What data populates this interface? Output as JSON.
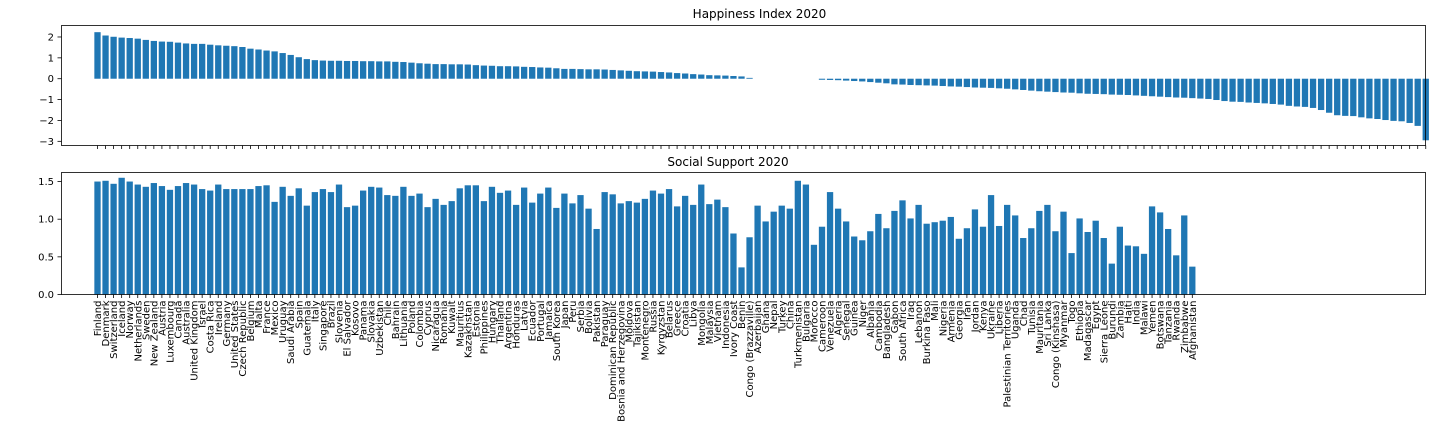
{
  "chart_data": [
    {
      "type": "bar",
      "title": "Happiness Index 2020",
      "xlabel": "",
      "ylabel": "",
      "ylim": [
        -3.2,
        2.55
      ],
      "yticks": [
        -3,
        -2,
        -1,
        0,
        1,
        2
      ],
      "bar_color": "#1f77b4",
      "show_xtick_labels": false,
      "values": [
        2.23,
        2.07,
        2.01,
        1.97,
        1.95,
        1.92,
        1.86,
        1.81,
        1.78,
        1.77,
        1.73,
        1.69,
        1.67,
        1.67,
        1.63,
        1.6,
        1.58,
        1.56,
        1.52,
        1.44,
        1.4,
        1.35,
        1.31,
        1.23,
        1.14,
        1.03,
        0.94,
        0.89,
        0.87,
        0.86,
        0.86,
        0.85,
        0.85,
        0.84,
        0.84,
        0.83,
        0.83,
        0.81,
        0.8,
        0.77,
        0.74,
        0.72,
        0.7,
        0.7,
        0.69,
        0.69,
        0.68,
        0.65,
        0.63,
        0.62,
        0.6,
        0.6,
        0.59,
        0.57,
        0.56,
        0.54,
        0.53,
        0.5,
        0.47,
        0.47,
        0.46,
        0.45,
        0.45,
        0.44,
        0.42,
        0.4,
        0.38,
        0.36,
        0.35,
        0.34,
        0.32,
        0.3,
        0.27,
        0.25,
        0.22,
        0.2,
        0.17,
        0.16,
        0.15,
        0.13,
        0.11,
        0.04,
        0,
        0,
        0,
        0,
        0,
        0,
        0,
        0,
        -0.05,
        -0.06,
        -0.07,
        -0.09,
        -0.11,
        -0.13,
        -0.16,
        -0.19,
        -0.22,
        -0.27,
        -0.28,
        -0.3,
        -0.31,
        -0.32,
        -0.33,
        -0.35,
        -0.37,
        -0.38,
        -0.4,
        -0.42,
        -0.43,
        -0.44,
        -0.46,
        -0.48,
        -0.51,
        -0.54,
        -0.57,
        -0.6,
        -0.62,
        -0.64,
        -0.66,
        -0.67,
        -0.7,
        -0.72,
        -0.73,
        -0.74,
        -0.76,
        -0.77,
        -0.78,
        -0.8,
        -0.82,
        -0.84,
        -0.86,
        -0.88,
        -0.9,
        -0.91,
        -0.93,
        -0.95,
        -0.97,
        -1.02,
        -1.07,
        -1.1,
        -1.11,
        -1.14,
        -1.16,
        -1.18,
        -1.21,
        -1.24,
        -1.3,
        -1.33,
        -1.35,
        -1.4,
        -1.5,
        -1.63,
        -1.75,
        -1.78,
        -1.79,
        -1.85,
        -1.9,
        -1.93,
        -1.98,
        -2.02,
        -2.04,
        -2.12,
        -2.26,
        -2.95
      ]
    },
    {
      "type": "bar",
      "title": "Social Support 2020",
      "xlabel": "",
      "ylabel": "",
      "ylim": [
        0,
        1.62
      ],
      "yticks": [
        0.0,
        0.5,
        1.0,
        1.5
      ],
      "ytick_labels": [
        "0.0",
        "0.5",
        "1.0",
        "1.5"
      ],
      "bar_color": "#1f77b4",
      "categories": [
        "Finland",
        "Denmark",
        "Switzerland",
        "Iceland",
        "Norway",
        "Netherlands",
        "Sweden",
        "New Zealand",
        "Austria",
        "Luxembourg",
        "Canada",
        "Australia",
        "United Kingdom",
        "Israel",
        "Costa Rica",
        "Ireland",
        "Germany",
        "United States",
        "Czech Republic",
        "Belgium",
        "Malta",
        "France",
        "Mexico",
        "Uruguay",
        "Saudi Arabia",
        "Spain",
        "Guatemala",
        "Italy",
        "Singapore",
        "Brazil",
        "Slovenia",
        "El Salvador",
        "Kosovo",
        "Panama",
        "Slovakia",
        "Uzbekistan",
        "Chile",
        "Bahrain",
        "Lithuania",
        "Poland",
        "Colombia",
        "Cyprus",
        "Nicaragua",
        "Romania",
        "Kuwait",
        "Mauritius",
        "Kazakhstan",
        "Estonia",
        "Philippines",
        "Hungary",
        "Thailand",
        "Argentina",
        "Honduras",
        "Latvia",
        "Ecuador",
        "Portugal",
        "Jamaica",
        "South Korea",
        "Japan",
        "Peru",
        "Serbia",
        "Bolivia",
        "Pakistan",
        "Paraguay",
        "Dominican Republic",
        "Bosnia and Herzegovina",
        "Moldova",
        "Tajikistan",
        "Montenegro",
        "Russia",
        "Kyrgyzstan",
        "Belarus",
        "Greece",
        "Croatia",
        "Libya",
        "Mongolia",
        "Malaysia",
        "Vietnam",
        "Indonesia",
        "Ivory Coast",
        "Benin",
        "Congo (Brazzaville)",
        "Azerbaijan",
        "Ghana",
        "Nepal",
        "Turkey",
        "China",
        "Turkmenistan",
        "Bulgaria",
        "Morocco",
        "Cameroon",
        "Venezuela",
        "Algeria",
        "Senegal",
        "Guinea",
        "Niger",
        "Albania",
        "Cambodia",
        "Bangladesh",
        "Gabon",
        "South Africa",
        "Iraq",
        "Lebanon",
        "Burkina Faso",
        "Mali",
        "Nigeria",
        "Armenia",
        "Georgia",
        "Iran",
        "Jordan",
        "Kenya",
        "Ukraine",
        "Liberia",
        "Palestinian Territories",
        "Uganda",
        "Chad",
        "Tunisia",
        "Mauritania",
        "Sri Lanka",
        "Congo (Kinshasa)",
        "Myanmar",
        "Togo",
        "Ethiopia",
        "Madagascar",
        "Egypt",
        "Sierra Leone",
        "Burundi",
        "Zambia",
        "Haiti",
        "India",
        "Malawi",
        "Yemen",
        "Botswana",
        "Tanzania",
        "Rwanda",
        "Zimbabwe",
        "Afghanistan"
      ],
      "values": [
        1.5,
        1.51,
        1.47,
        1.55,
        1.5,
        1.46,
        1.43,
        1.48,
        1.44,
        1.39,
        1.44,
        1.48,
        1.46,
        1.4,
        1.38,
        1.46,
        1.4,
        1.4,
        1.4,
        1.4,
        1.44,
        1.45,
        1.23,
        1.43,
        1.31,
        1.41,
        1.18,
        1.36,
        1.4,
        1.36,
        1.46,
        1.16,
        1.18,
        1.38,
        1.43,
        1.42,
        1.32,
        1.31,
        1.43,
        1.31,
        1.34,
        1.16,
        1.27,
        1.19,
        1.24,
        1.41,
        1.45,
        1.45,
        1.24,
        1.43,
        1.35,
        1.38,
        1.19,
        1.42,
        1.22,
        1.34,
        1.42,
        1.15,
        1.34,
        1.21,
        1.32,
        1.14,
        0.87,
        1.36,
        1.33,
        1.21,
        1.24,
        1.22,
        1.27,
        1.38,
        1.34,
        1.4,
        1.17,
        1.31,
        1.19,
        1.46,
        1.2,
        1.26,
        1.16,
        0.81,
        0.36,
        0.76,
        1.18,
        0.97,
        1.1,
        1.18,
        1.14,
        1.51,
        1.46,
        0.66,
        0.9,
        1.36,
        1.14,
        0.97,
        0.77,
        0.72,
        0.84,
        1.07,
        0.88,
        1.11,
        1.25,
        1.01,
        1.19,
        0.94,
        0.96,
        0.98,
        1.03,
        0.74,
        0.88,
        1.13,
        0.9,
        1.32,
        0.91,
        1.19,
        1.05,
        0.75,
        0.88,
        1.11,
        1.19,
        0.84,
        1.1,
        0.55,
        1.01,
        0.83,
        0.98,
        0.75,
        0.41,
        0.9,
        0.65,
        0.64,
        0.54,
        1.17,
        1.09,
        0.87,
        0.52,
        1.05,
        0.37
      ]
    }
  ]
}
